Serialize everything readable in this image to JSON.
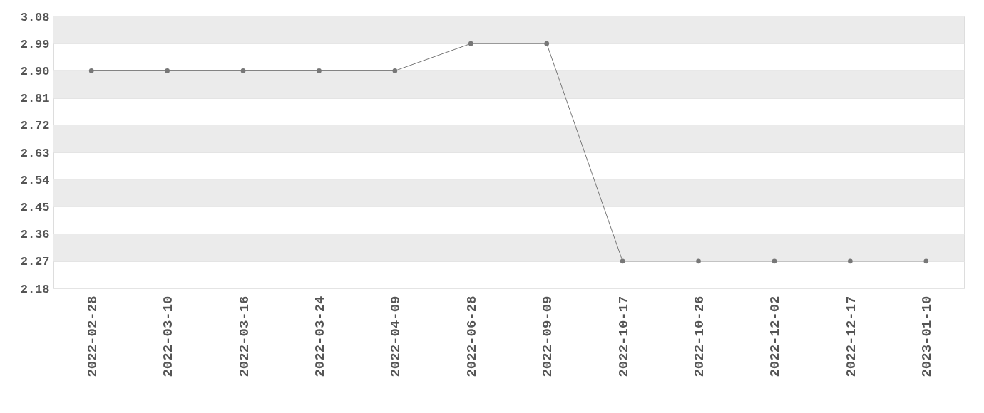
{
  "chart_data": {
    "type": "line",
    "categories": [
      "2022-02-28",
      "2022-03-10",
      "2022-03-16",
      "2022-03-24",
      "2022-04-09",
      "2022-06-28",
      "2022-09-09",
      "2022-10-17",
      "2022-10-26",
      "2022-12-02",
      "2022-12-17",
      "2023-01-10"
    ],
    "series": [
      {
        "color": "#777777",
        "values": [
          2.9,
          2.9,
          2.9,
          2.9,
          2.9,
          2.99,
          2.99,
          2.27,
          2.27,
          2.27,
          2.27,
          2.27
        ]
      }
    ],
    "ylim": [
      2.18,
      3.08
    ],
    "yticks": [
      {
        "value": 2.18,
        "label": "2.18"
      },
      {
        "value": 2.27,
        "label": "2.27"
      },
      {
        "value": 2.36,
        "label": "2.36"
      },
      {
        "value": 2.45,
        "label": "2.45"
      },
      {
        "value": 2.54,
        "label": "2.54"
      },
      {
        "value": 2.63,
        "label": "2.63"
      },
      {
        "value": 2.72,
        "label": "2.72"
      },
      {
        "value": 2.81,
        "label": "2.81"
      },
      {
        "value": 2.9,
        "label": "2.90"
      },
      {
        "value": 2.99,
        "label": "2.99"
      },
      {
        "value": 3.08,
        "label": "3.08"
      }
    ],
    "grid": true,
    "marker": "circle",
    "line_style": "solid"
  }
}
